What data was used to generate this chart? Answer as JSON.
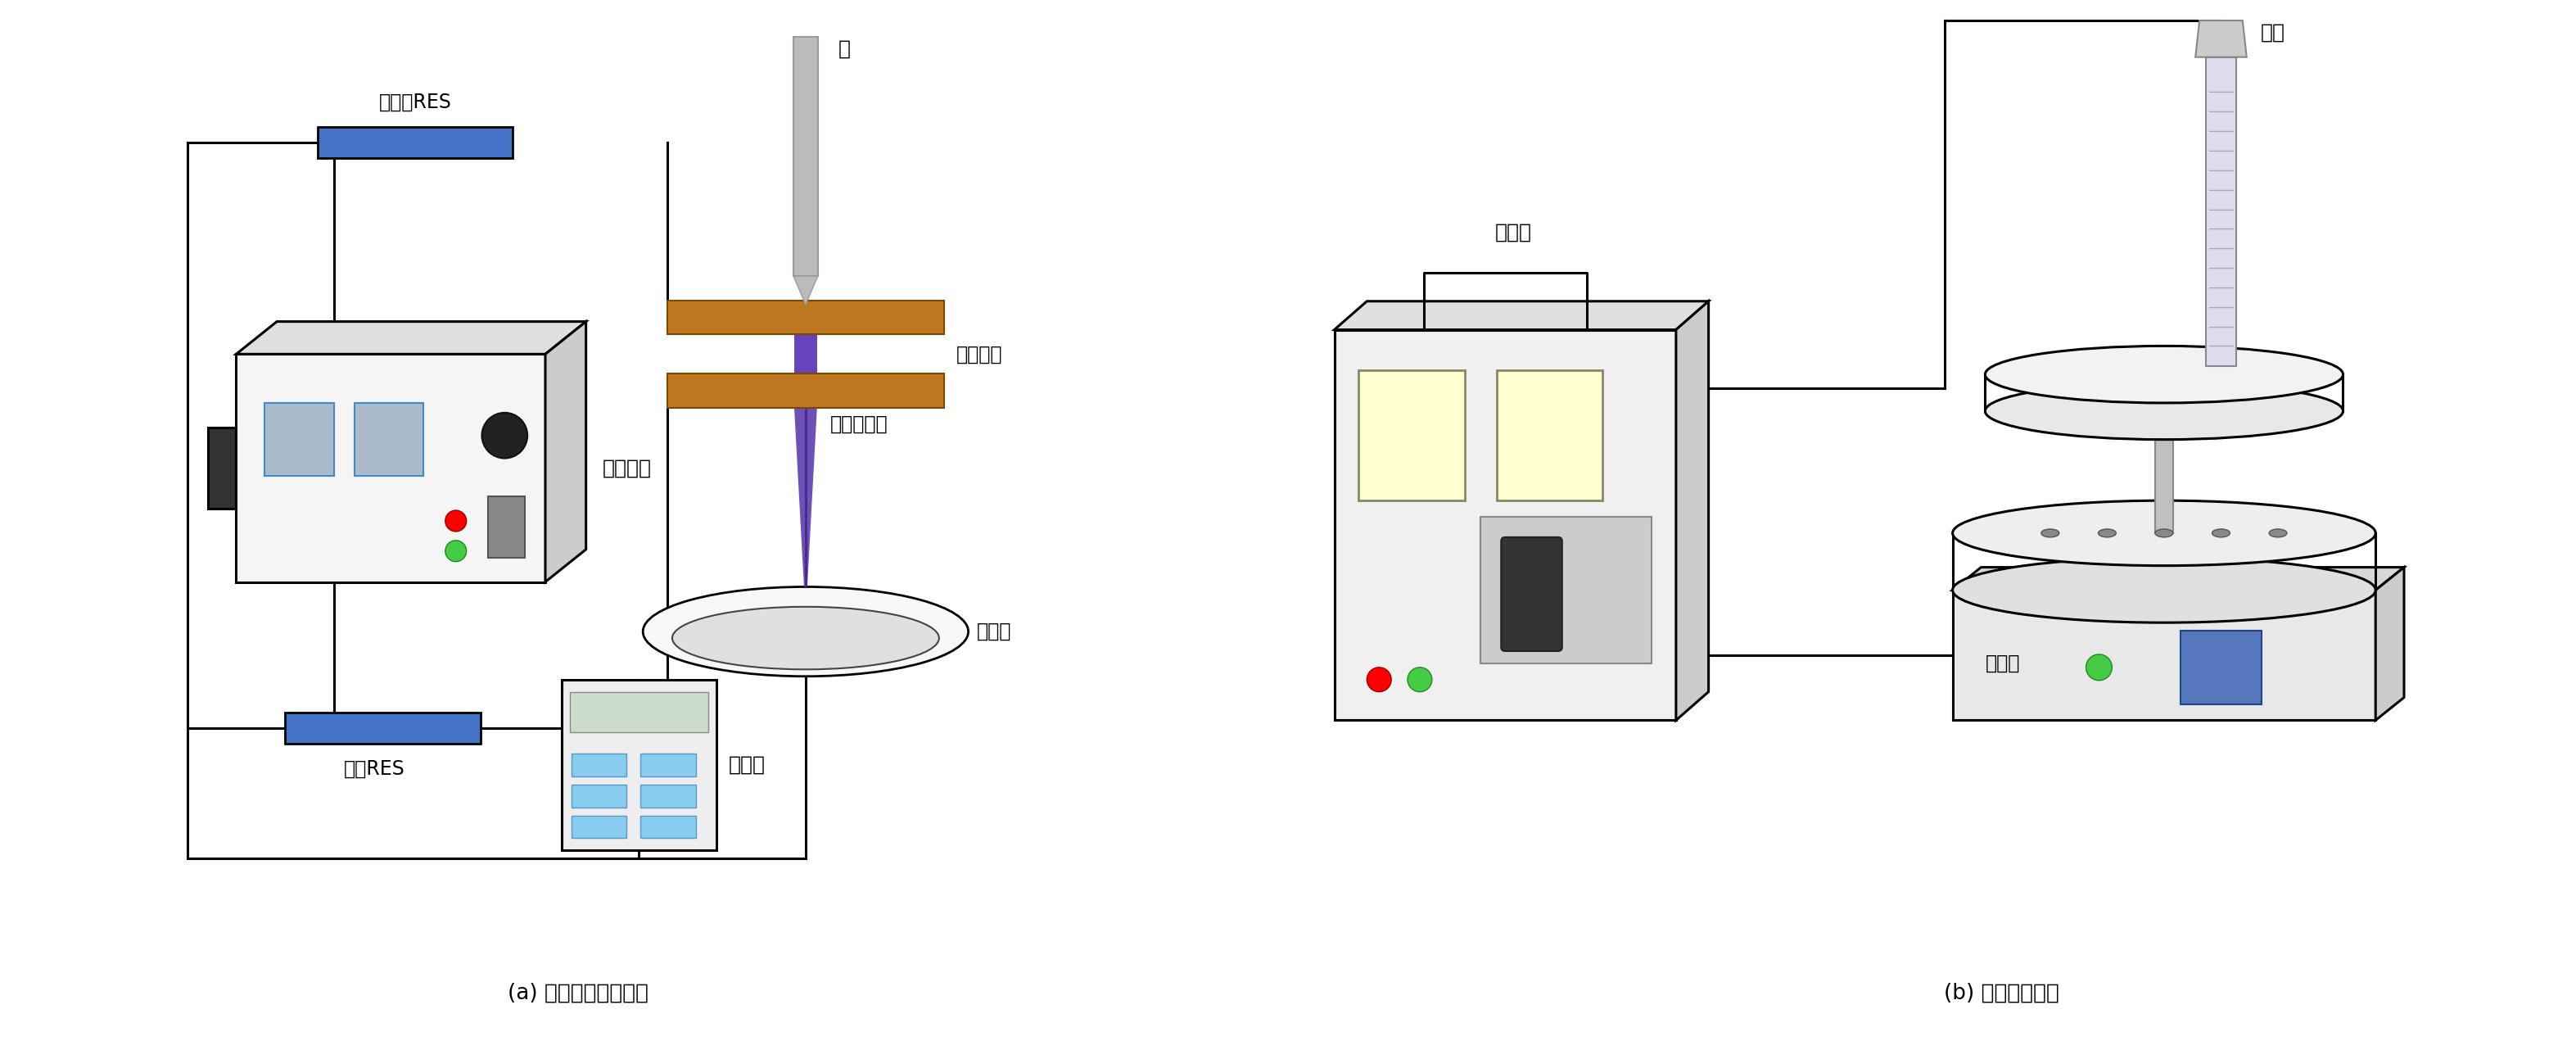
{
  "fig_width": 31.46,
  "fig_height": 12.71,
  "bg_color": "#ffffff",
  "label_a": "(a) 辉光放电等离子体",
  "label_b": "(b) 光化学反应仪",
  "text_zhenliuqi": "镇流器RES",
  "text_jianyRES": "检验RES",
  "text_wendian": "稳电压源",
  "text_wanyongbiao": "万用表",
  "text_zhen": "针",
  "text_yinjixunhuan": "阴极循环",
  "text_denglizisheliu": "等离子射流",
  "text_fanyingqi_a": "反应器",
  "text_kongzhiqi": "控制器",
  "text_qideng": "氙灯",
  "text_fanyingqi_b": "反应器",
  "line_color": "#000000",
  "resistor_color": "#4472c4",
  "electrode_color": "#c07820",
  "plasma_top_color": "#7755aa",
  "plasma_bot_color": "#5533aa",
  "needle_color": "#bbbbbb"
}
